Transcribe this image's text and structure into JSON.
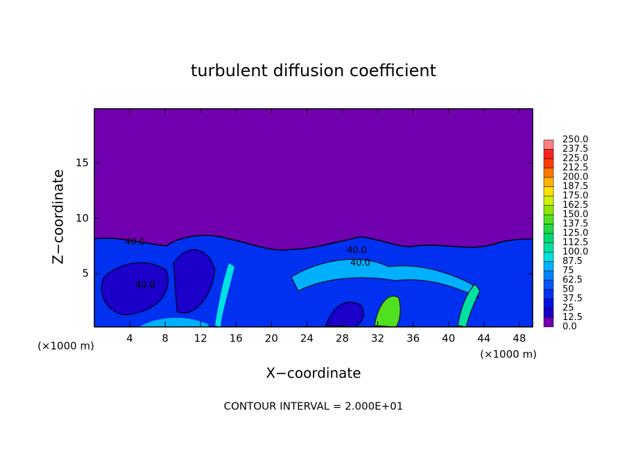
{
  "chart_data": {
    "type": "contour",
    "title": "turbulent diffusion coefficient",
    "x_label": "X−coordinate",
    "y_label": "Z−coordinate",
    "x_unit_left": "(×1000 m)",
    "x_unit_right": "(×1000 m)",
    "footnote": "CONTOUR INTERVAL = 2.000E+01",
    "contour_labels": [
      "40.0",
      "40.0",
      "40.0",
      "40.0"
    ],
    "xlim": [
      0,
      49.5
    ],
    "ylim": [
      0.2,
      19.9
    ],
    "xticks": [
      4,
      8,
      12,
      16,
      20,
      24,
      28,
      32,
      36,
      40,
      44,
      48
    ],
    "yticks": [
      5,
      10,
      15
    ],
    "colorbar": {
      "levels": [
        {
          "value": 0,
          "label": "0.0"
        },
        12.5,
        25,
        37.5,
        50,
        62.5,
        75,
        87.5,
        {
          "value": 100,
          "label": "100.0"
        },
        112.5,
        {
          "value": 125,
          "label": "125.0"
        },
        137.5,
        {
          "value": 150,
          "label": "150.0"
        },
        162.5,
        {
          "value": 175,
          "label": "175.0"
        },
        187.5,
        {
          "value": 200,
          "label": "200.0"
        },
        212.5,
        {
          "value": 225,
          "label": "225.0"
        },
        237.5,
        {
          "value": 250,
          "label": "250.0"
        }
      ],
      "colors": [
        "#7000b0",
        "#1a00c8",
        "#0010e0",
        "#0030f0",
        "#0055ff",
        "#0080ff",
        "#00b0ff",
        "#00e0e0",
        "#00e0a0",
        "#00d870",
        "#20d840",
        "#50e020",
        "#90e800",
        "#d0f000",
        "#ffe000",
        "#ffb000",
        "#ff7800",
        "#ff3c00",
        "#ff2020",
        "#ff8080"
      ]
    }
  }
}
